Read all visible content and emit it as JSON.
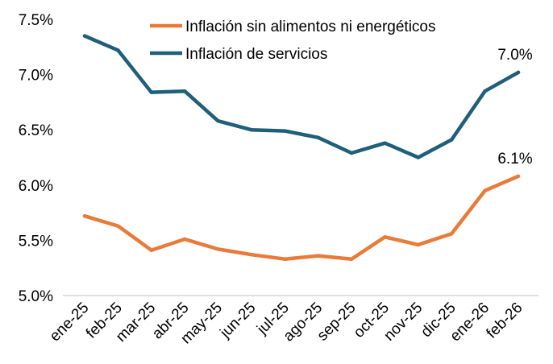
{
  "chart_data": {
    "type": "line",
    "title": "",
    "xlabel": "",
    "ylabel": "",
    "categories": [
      "ene-25",
      "feb-25",
      "mar-25",
      "abr-25",
      "may-25",
      "jun-25",
      "jul-25",
      "ago-25",
      "sep-25",
      "oct-25",
      "nov-25",
      "dic-25",
      "ene-26",
      "feb-26"
    ],
    "ylim": [
      5.0,
      7.5
    ],
    "yticks": [
      5.0,
      5.5,
      6.0,
      6.5,
      7.0,
      7.5
    ],
    "ytick_labels": [
      "5.0%",
      "5.5%",
      "6.0%",
      "6.5%",
      "7.0%",
      "7.5%"
    ],
    "grid": false,
    "legend_position": "top-center",
    "series": [
      {
        "name": "Inflación sin alimentos ni energéticos",
        "color": "#E87B3A",
        "values": [
          5.72,
          5.63,
          5.41,
          5.51,
          5.42,
          5.37,
          5.33,
          5.36,
          5.33,
          5.53,
          5.46,
          5.56,
          5.95,
          6.08
        ],
        "end_label": "6.1%"
      },
      {
        "name": "Inflación de servicios",
        "color": "#1F5F7A",
        "values": [
          7.35,
          7.22,
          6.84,
          6.85,
          6.58,
          6.5,
          6.49,
          6.43,
          6.29,
          6.38,
          6.25,
          6.41,
          6.85,
          7.02
        ],
        "end_label": "7.0%"
      }
    ]
  }
}
